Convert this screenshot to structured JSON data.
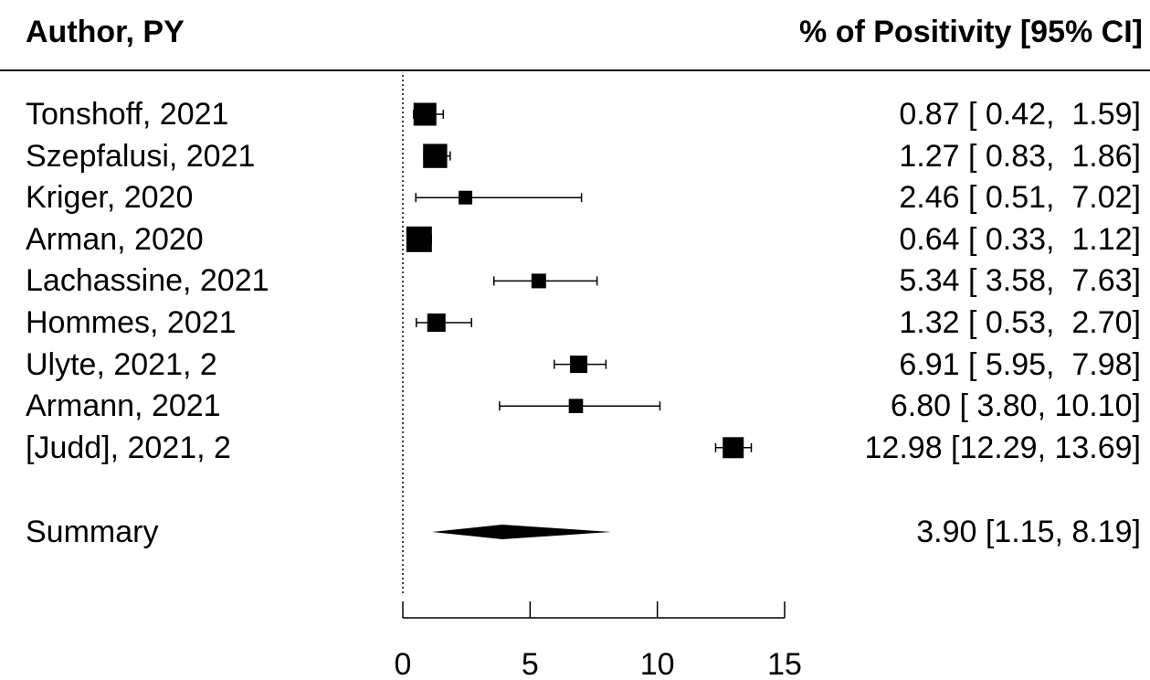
{
  "header": {
    "left": "Author, PY",
    "right": "% of Positivity [95% CI]"
  },
  "chart_data": {
    "type": "forest",
    "xlim": [
      0,
      15
    ],
    "xticks": [
      0,
      5,
      10,
      15
    ],
    "reference_line": 0,
    "studies": [
      {
        "label": "Tonshoff, 2021",
        "estimate": 0.87,
        "lo": 0.42,
        "hi": 1.59,
        "ci_text": "0.87 [ 0.42,  1.59]",
        "weight": 0.85
      },
      {
        "label": "Szepfalusi, 2021",
        "estimate": 1.27,
        "lo": 0.83,
        "hi": 1.86,
        "ci_text": "1.27 [ 0.83,  1.86]",
        "weight": 0.92
      },
      {
        "label": "Kriger, 2020",
        "estimate": 2.46,
        "lo": 0.51,
        "hi": 7.02,
        "ci_text": "2.46 [ 0.51,  7.02]",
        "weight": 0.35
      },
      {
        "label": "Arman, 2020",
        "estimate": 0.64,
        "lo": 0.33,
        "hi": 1.12,
        "ci_text": "0.64 [ 0.33,  1.12]",
        "weight": 1.0
      },
      {
        "label": "Lachassine, 2021",
        "estimate": 5.34,
        "lo": 3.58,
        "hi": 7.63,
        "ci_text": "5.34 [ 3.58,  7.63]",
        "weight": 0.4
      },
      {
        "label": "Hommes, 2021",
        "estimate": 1.32,
        "lo": 0.53,
        "hi": 2.7,
        "ci_text": "1.32 [ 0.53,  2.70]",
        "weight": 0.6
      },
      {
        "label": "Ulyte, 2021, 2",
        "estimate": 6.91,
        "lo": 5.95,
        "hi": 7.98,
        "ci_text": "6.91 [ 5.95,  7.98]",
        "weight": 0.55
      },
      {
        "label": "Armann, 2021",
        "estimate": 6.8,
        "lo": 3.8,
        "hi": 10.1,
        "ci_text": "6.80 [ 3.80, 10.10]",
        "weight": 0.38
      },
      {
        "label": "[Judd], 2021, 2",
        "estimate": 12.98,
        "lo": 12.29,
        "hi": 13.69,
        "ci_text": "12.98 [12.29, 13.69]",
        "weight": 0.75
      }
    ],
    "summary": {
      "label": "Summary",
      "estimate": 3.9,
      "lo": 1.15,
      "hi": 8.19,
      "ci_text": "3.90 [1.15, 8.19]"
    }
  }
}
